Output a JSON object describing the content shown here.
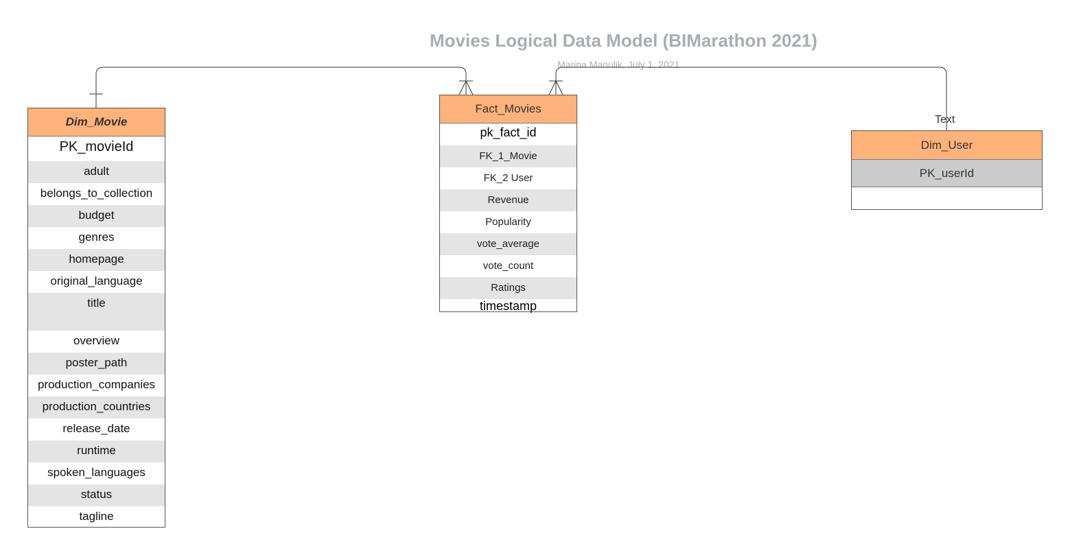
{
  "diagram": {
    "title": "Movies Logical Data Model (BIMarathon 2021)",
    "subtitle": "Marina Manulik, July 1, 2021",
    "edge_label": "Text"
  },
  "dim_movie": {
    "name": "Dim_Movie",
    "fields": [
      "PK_movieId",
      "adult",
      "belongs_to_collection",
      "budget",
      "genres",
      "homepage",
      "original_language",
      "title",
      "overview",
      "poster_path",
      "production_companies",
      "production_countries",
      "release_date",
      "runtime",
      "spoken_languages",
      "status",
      "tagline"
    ]
  },
  "fact_movies": {
    "name": "Fact_Movies",
    "fields": [
      "pk_fact_id",
      "FK_1_Movie",
      "FK_2 User",
      "Revenue",
      "Popularity",
      "vote_average",
      "vote_count",
      "Ratings",
      "timestamp"
    ]
  },
  "dim_user": {
    "name": "Dim_User",
    "fields": [
      "PK_userId"
    ]
  },
  "colors": {
    "header_fill": "#ffb27a",
    "row_shade": "#e4e4e4",
    "title_gray": "#a8adb5",
    "pk_fill": "#cccccc"
  },
  "relationships": [
    {
      "from": "Dim_Movie",
      "to": "Fact_Movies",
      "from_cardinality": "one",
      "to_cardinality": "many"
    },
    {
      "from": "Dim_User",
      "to": "Fact_Movies",
      "from_cardinality": "one",
      "to_cardinality": "many"
    }
  ]
}
